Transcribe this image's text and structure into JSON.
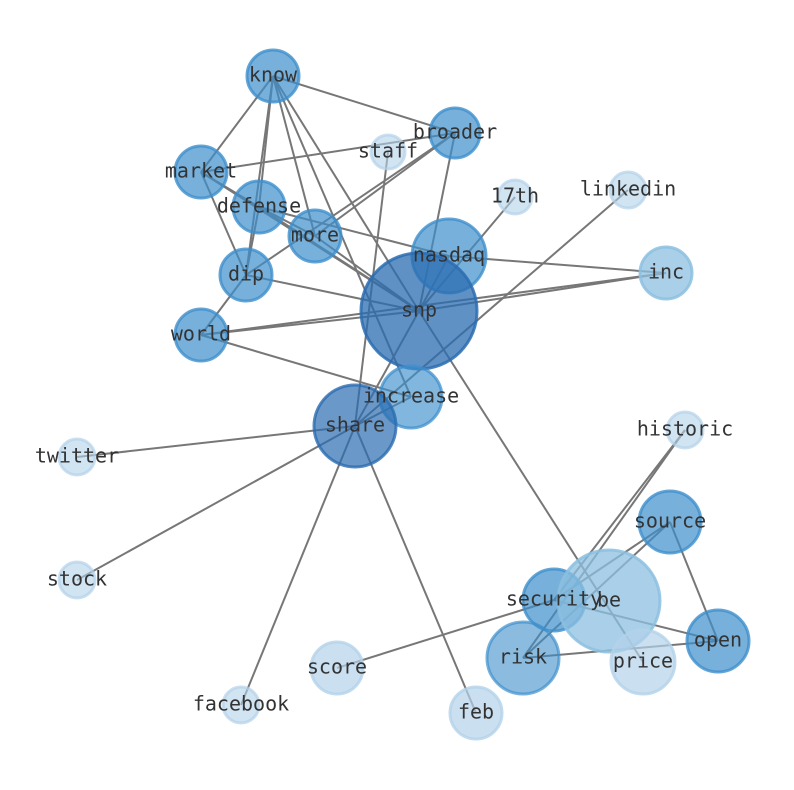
{
  "nodes": [
    {
      "label": "know"
    },
    {
      "label": "broader"
    },
    {
      "label": "staff"
    },
    {
      "label": "market"
    },
    {
      "label": "defense"
    },
    {
      "label": "17th"
    },
    {
      "label": "linkedin"
    },
    {
      "label": "more"
    },
    {
      "label": "nasdaq"
    },
    {
      "label": "inc"
    },
    {
      "label": "dip"
    },
    {
      "label": "snp"
    },
    {
      "label": "world"
    },
    {
      "label": "increase"
    },
    {
      "label": "share"
    },
    {
      "label": "twitter"
    },
    {
      "label": "historic"
    },
    {
      "label": "source"
    },
    {
      "label": "stock"
    },
    {
      "label": "security"
    },
    {
      "label": "be"
    },
    {
      "label": "open"
    },
    {
      "label": "risk"
    },
    {
      "label": "price"
    },
    {
      "label": "score"
    },
    {
      "label": "facebook"
    },
    {
      "label": "feb"
    }
  ]
}
